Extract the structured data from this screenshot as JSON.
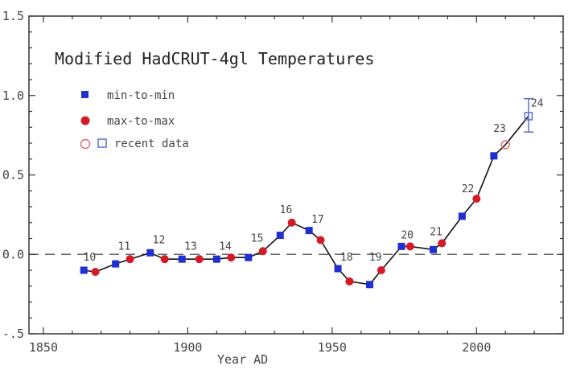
{
  "chart_data": {
    "type": "line",
    "title": "Modified HadCRUT-4gl Temperatures",
    "xlabel": "Year AD",
    "ylabel": "",
    "xlim": [
      1845,
      2030
    ],
    "ylim": [
      -0.5,
      1.5
    ],
    "x_ticks": [
      1850,
      1900,
      1950,
      2000
    ],
    "y_ticks": [
      -0.5,
      0.0,
      0.5,
      1.0,
      1.5
    ],
    "x_tick_labels": [
      "1850",
      "1900",
      "1950",
      "2000"
    ],
    "y_tick_labels": [
      "-.5",
      "0.0",
      "0.5",
      "1.0",
      "1.5"
    ],
    "zero_line": "dashed",
    "legend": {
      "placement": "upper-left",
      "entries": [
        {
          "label": "min-to-min",
          "marker": "square",
          "color": "#1f2fd0"
        },
        {
          "label": "max-to-max",
          "marker": "circle",
          "color": "#d61a25"
        },
        {
          "label": "recent data",
          "marker": "open-circle-and-square",
          "colors": [
            "#e06a73",
            "#5b6fd6"
          ]
        }
      ]
    },
    "series": [
      {
        "name": "min-to-min",
        "marker": "square",
        "color": "#1f2fd0",
        "points": [
          {
            "x": 1864,
            "y": -0.1
          },
          {
            "x": 1875,
            "y": -0.06
          },
          {
            "x": 1887,
            "y": 0.01
          },
          {
            "x": 1898,
            "y": -0.03
          },
          {
            "x": 1910,
            "y": -0.03
          },
          {
            "x": 1921,
            "y": -0.02
          },
          {
            "x": 1932,
            "y": 0.12
          },
          {
            "x": 1942,
            "y": 0.15
          },
          {
            "x": 1952,
            "y": -0.09
          },
          {
            "x": 1963,
            "y": -0.19
          },
          {
            "x": 1974,
            "y": 0.05
          },
          {
            "x": 1985,
            "y": 0.03
          },
          {
            "x": 1995,
            "y": 0.24
          },
          {
            "x": 2006,
            "y": 0.62
          }
        ]
      },
      {
        "name": "max-to-max",
        "marker": "circle",
        "color": "#d61a25",
        "points": [
          {
            "x": 1868,
            "y": -0.11
          },
          {
            "x": 1880,
            "y": -0.03
          },
          {
            "x": 1892,
            "y": -0.03
          },
          {
            "x": 1904,
            "y": -0.03
          },
          {
            "x": 1915,
            "y": -0.02
          },
          {
            "x": 1926,
            "y": 0.02
          },
          {
            "x": 1936,
            "y": 0.2
          },
          {
            "x": 1946,
            "y": 0.09
          },
          {
            "x": 1956,
            "y": -0.17
          },
          {
            "x": 1967,
            "y": -0.1
          },
          {
            "x": 1977,
            "y": 0.05
          },
          {
            "x": 1988,
            "y": 0.07
          },
          {
            "x": 2000,
            "y": 0.35
          }
        ]
      },
      {
        "name": "recent data",
        "points": [
          {
            "x": 2010,
            "y": 0.69,
            "marker": "open-circle",
            "color": "#e06a73"
          },
          {
            "x": 2018,
            "y": 0.87,
            "marker": "open-square",
            "color": "#5b6fd6",
            "error": [
              0.77,
              0.98
            ]
          }
        ]
      }
    ],
    "connecting_line": [
      [
        1864,
        -0.1
      ],
      [
        1868,
        -0.11
      ],
      [
        1875,
        -0.06
      ],
      [
        1880,
        -0.03
      ],
      [
        1887,
        0.01
      ],
      [
        1892,
        -0.03
      ],
      [
        1898,
        -0.03
      ],
      [
        1904,
        -0.03
      ],
      [
        1910,
        -0.03
      ],
      [
        1915,
        -0.02
      ],
      [
        1921,
        -0.02
      ],
      [
        1926,
        0.02
      ],
      [
        1932,
        0.12
      ],
      [
        1936,
        0.2
      ],
      [
        1942,
        0.15
      ],
      [
        1946,
        0.09
      ],
      [
        1952,
        -0.09
      ],
      [
        1956,
        -0.17
      ],
      [
        1963,
        -0.19
      ],
      [
        1967,
        -0.1
      ],
      [
        1974,
        0.05
      ],
      [
        1977,
        0.05
      ],
      [
        1985,
        0.03
      ],
      [
        1988,
        0.07
      ],
      [
        1995,
        0.24
      ],
      [
        2000,
        0.35
      ],
      [
        2006,
        0.62
      ],
      [
        2010,
        0.69
      ],
      [
        2018,
        0.87
      ]
    ],
    "annotations": [
      {
        "text": "10",
        "x": 1866,
        "y": -0.04
      },
      {
        "text": "11",
        "x": 1878,
        "y": 0.03
      },
      {
        "text": "12",
        "x": 1890,
        "y": 0.07
      },
      {
        "text": "13",
        "x": 1901,
        "y": 0.03
      },
      {
        "text": "14",
        "x": 1913,
        "y": 0.03
      },
      {
        "text": "15",
        "x": 1924,
        "y": 0.08
      },
      {
        "text": "16",
        "x": 1934,
        "y": 0.26
      },
      {
        "text": "17",
        "x": 1945,
        "y": 0.2
      },
      {
        "text": "18",
        "x": 1955,
        "y": -0.04
      },
      {
        "text": "19",
        "x": 1965,
        "y": -0.04
      },
      {
        "text": "20",
        "x": 1976,
        "y": 0.1
      },
      {
        "text": "21",
        "x": 1986,
        "y": 0.12
      },
      {
        "text": "22",
        "x": 1997,
        "y": 0.39
      },
      {
        "text": "23",
        "x": 2008,
        "y": 0.77
      },
      {
        "text": "24",
        "x": 2021,
        "y": 0.93
      }
    ]
  }
}
